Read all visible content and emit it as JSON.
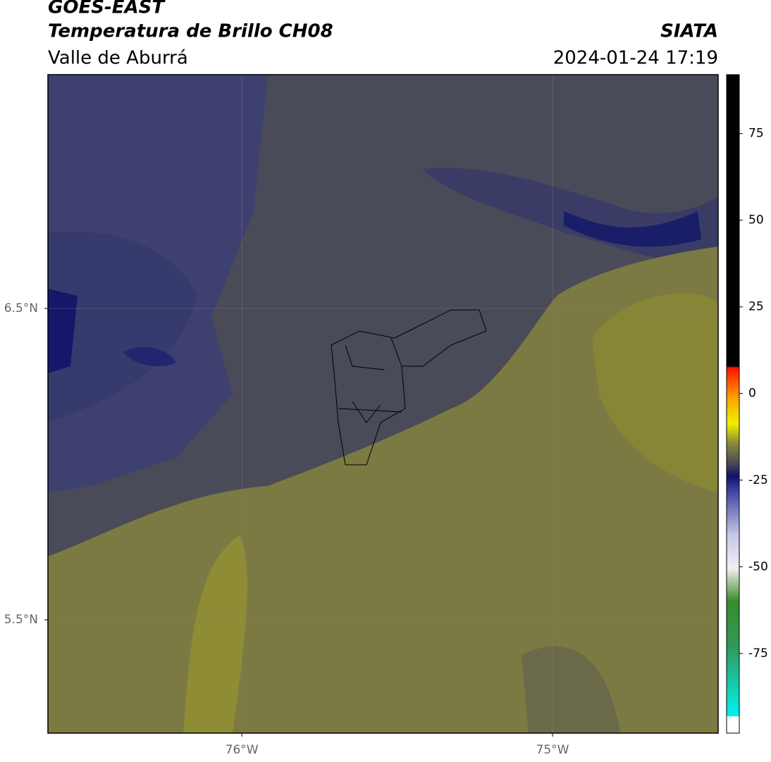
{
  "header": {
    "title": "GOES-EAST",
    "subtitle": "Temperatura de Brillo CH08",
    "region": "Valle de Aburrá",
    "source": "SIATA",
    "datetime": "2024-01-24 17:19"
  },
  "map": {
    "xlim": [
      -76.624,
      -74.467
    ],
    "ylim": [
      5.136,
      7.251
    ],
    "xticks": [
      {
        "value": -76,
        "label": "76°W"
      },
      {
        "value": -75,
        "label": "75°W"
      }
    ],
    "yticks": [
      {
        "value": 6.5,
        "label": "6.5°N"
      },
      {
        "value": 5.5,
        "label": "5.5°N"
      }
    ],
    "grid": true
  },
  "colorbar": {
    "lim": [
      -98,
      92
    ],
    "ticks": [
      75,
      50,
      25,
      0,
      -25,
      -50,
      -75
    ]
  }
}
